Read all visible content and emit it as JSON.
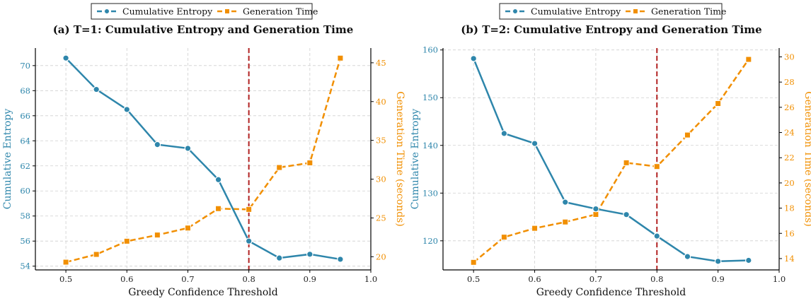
{
  "colors": {
    "entropy": "#2e86ab",
    "time": "#f18f01",
    "threshold": "#b22222",
    "grid": "#cfcfcf",
    "axis": "#000000"
  },
  "icons": {
    "entropy_marker": "circle",
    "time_marker": "square"
  },
  "legend": {
    "entropy_label": "Cumulative Entropy",
    "time_label": "Generation Time",
    "placement": "top-center"
  },
  "chart_data": [
    {
      "type": "line",
      "title": "(a) T=1: Cumulative Entropy and Generation Time",
      "xlabel": "Greedy Confidence Threshold",
      "ylabel_left": "Cumulative Entropy",
      "ylabel_right": "Generation Time (seconds)",
      "xlim": [
        0.45,
        1.0
      ],
      "xticks": [
        "0.5",
        "0.6",
        "0.7",
        "0.8",
        "0.9",
        "1.0"
      ],
      "ylim_left": [
        53.7,
        71.4
      ],
      "yticks_left": [
        "54",
        "56",
        "58",
        "60",
        "62",
        "64",
        "66",
        "68",
        "70"
      ],
      "ylim_right": [
        18.3,
        46.9
      ],
      "yticks_right": [
        "20",
        "25",
        "30",
        "35",
        "40",
        "45"
      ],
      "threshold_line": 0.8,
      "grid": true,
      "x": [
        0.5,
        0.55,
        0.6,
        0.65,
        0.7,
        0.75,
        0.8,
        0.85,
        0.9,
        0.95
      ],
      "series": [
        {
          "name": "Cumulative Entropy",
          "axis": "left",
          "values": [
            70.6,
            68.1,
            66.5,
            63.7,
            63.4,
            60.9,
            56.0,
            54.65,
            54.95,
            54.55
          ]
        },
        {
          "name": "Generation Time",
          "axis": "right",
          "values": [
            19.3,
            20.3,
            22.0,
            22.8,
            23.7,
            26.2,
            26.1,
            31.5,
            32.1,
            45.6
          ]
        }
      ]
    },
    {
      "type": "line",
      "title": "(b) T=2: Cumulative Entropy and Generation Time",
      "xlabel": "Greedy Confidence Threshold",
      "ylabel_left": "Cumulative Entropy",
      "ylabel_right": "Generation Time (seconds)",
      "xlim": [
        0.45,
        1.0
      ],
      "xticks": [
        "0.5",
        "0.6",
        "0.7",
        "0.8",
        "0.9",
        "1.0"
      ],
      "ylim_left": [
        113.9,
        160.4
      ],
      "yticks_left": [
        "120",
        "130",
        "140",
        "150",
        "160"
      ],
      "ylim_right": [
        13.1,
        30.7
      ],
      "yticks_right": [
        "14",
        "16",
        "18",
        "20",
        "22",
        "24",
        "26",
        "28",
        "30"
      ],
      "threshold_line": 0.8,
      "grid": true,
      "x": [
        0.5,
        0.55,
        0.6,
        0.65,
        0.7,
        0.75,
        0.8,
        0.85,
        0.9,
        0.95
      ],
      "series": [
        {
          "name": "Cumulative Entropy",
          "axis": "left",
          "values": [
            158.2,
            142.5,
            140.4,
            128.1,
            126.7,
            125.5,
            121.0,
            116.7,
            115.7,
            115.9
          ]
        },
        {
          "name": "Generation Time",
          "axis": "right",
          "values": [
            13.7,
            15.7,
            16.4,
            16.9,
            17.5,
            21.6,
            21.3,
            23.8,
            26.3,
            29.8
          ]
        }
      ]
    }
  ]
}
